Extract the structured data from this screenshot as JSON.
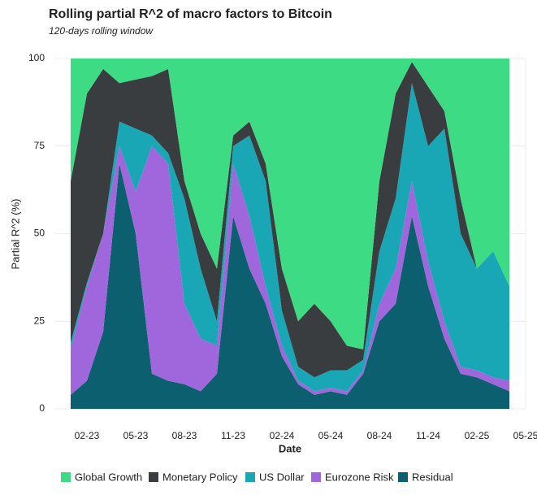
{
  "chart_data": {
    "type": "stacked-area",
    "title": "Rolling partial R^2 of macro factors to Bitcoin",
    "subtitle": "120-days rolling window",
    "x_label": "Date",
    "y_label": "Partial R^2 (%)",
    "x": [
      "2023-01",
      "2023-02",
      "2023-03",
      "2023-04",
      "2023-05",
      "2023-06",
      "2023-07",
      "2023-08",
      "2023-09",
      "2023-10",
      "2023-11",
      "2023-12",
      "2024-01",
      "2024-02",
      "2024-03",
      "2024-04",
      "2024-05",
      "2024-06",
      "2024-07",
      "2024-08",
      "2024-09",
      "2024-10",
      "2024-11",
      "2024-12",
      "2025-01",
      "2025-02",
      "2025-03",
      "2025-04"
    ],
    "xlim": [
      "2022-12",
      "2025-05"
    ],
    "xticks": [
      {
        "value": "2023-02",
        "label": "02-23"
      },
      {
        "value": "2023-05",
        "label": "05-23"
      },
      {
        "value": "2023-08",
        "label": "08-23"
      },
      {
        "value": "2023-11",
        "label": "11-23"
      },
      {
        "value": "2024-02",
        "label": "02-24"
      },
      {
        "value": "2024-05",
        "label": "05-24"
      },
      {
        "value": "2024-08",
        "label": "08-24"
      },
      {
        "value": "2024-11",
        "label": "11-24"
      },
      {
        "value": "2025-02",
        "label": "02-25"
      },
      {
        "value": "2025-05",
        "label": "05-25"
      }
    ],
    "ylim": [
      0,
      100
    ],
    "yticks": [
      0,
      25,
      50,
      75,
      100
    ],
    "grid": true,
    "legend": "bottom",
    "series": [
      {
        "name": "Residual",
        "color": "#0b5f6e",
        "values": [
          4,
          8,
          22,
          70,
          50,
          10,
          8,
          7,
          5,
          10,
          55,
          40,
          30,
          15,
          7,
          4,
          5,
          4,
          10,
          25,
          30,
          55,
          35,
          20,
          10,
          9,
          7,
          5
        ]
      },
      {
        "name": "Eurozone Risk",
        "color": "#a066dc",
        "values": [
          13,
          27,
          28,
          5,
          12,
          65,
          62,
          23,
          15,
          8,
          15,
          15,
          5,
          3,
          1,
          1,
          1,
          1,
          1,
          5,
          10,
          10,
          7,
          5,
          2,
          2,
          2,
          3
        ]
      },
      {
        "name": "US Dollar",
        "color": "#1aa7b5",
        "values": [
          2,
          1,
          0,
          7,
          18,
          3,
          3,
          30,
          20,
          7,
          5,
          23,
          30,
          10,
          4,
          4,
          5,
          6,
          3,
          15,
          20,
          28,
          33,
          55,
          38,
          29,
          36,
          27
        ]
      },
      {
        "name": "Monetary Policy",
        "color": "#3a3d3f",
        "values": [
          46,
          54,
          47,
          11,
          14,
          17,
          24,
          5,
          10,
          15,
          3,
          4,
          5,
          12,
          13,
          21,
          14,
          7,
          3,
          20,
          30,
          6,
          17,
          5,
          10,
          0,
          0,
          0
        ]
      },
      {
        "name": "Global Growth",
        "color": "#3ddc84",
        "values": [
          35,
          10,
          3,
          7,
          6,
          5,
          3,
          35,
          50,
          60,
          22,
          18,
          30,
          60,
          75,
          70,
          75,
          82,
          83,
          35,
          10,
          1,
          8,
          15,
          40,
          60,
          55,
          65
        ]
      }
    ]
  }
}
